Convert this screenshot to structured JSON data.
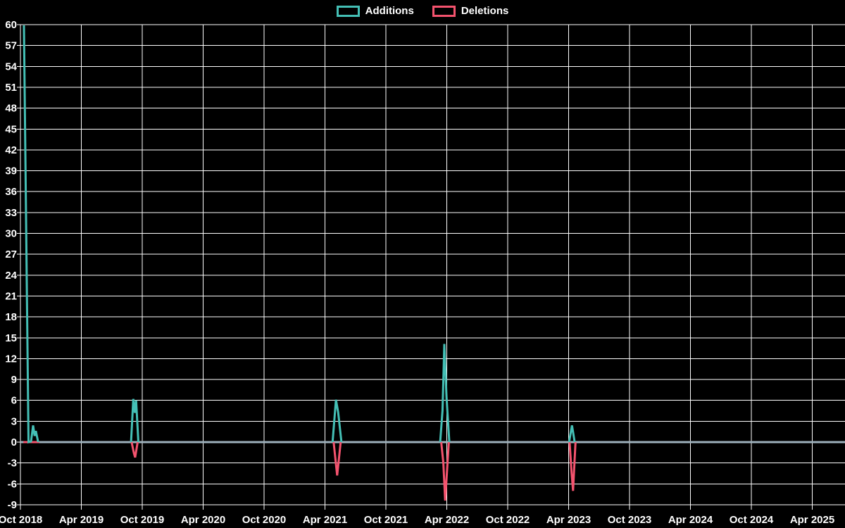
{
  "chart_data": {
    "type": "line",
    "title": "",
    "legend_position": "top-center",
    "grid": true,
    "background_color": "#000000",
    "grid_color": "#ffffff",
    "text_color": "#ffffff",
    "zero_baseline_color": "#9db0bb",
    "x_axis": {
      "unit": "months since Oct 2018",
      "tick_month_offsets": [
        0,
        6,
        12,
        18,
        24,
        30,
        36,
        42,
        48,
        54,
        60,
        66,
        72,
        78
      ],
      "tick_labels": [
        "Oct 2018",
        "Apr 2019",
        "Oct 2019",
        "Apr 2020",
        "Oct 2020",
        "Apr 2021",
        "Oct 2021",
        "Apr 2022",
        "Oct 2022",
        "Apr 2023",
        "Oct 2023",
        "Apr 2024",
        "Oct 2024",
        "Apr 2025"
      ]
    },
    "y_axis": {
      "min": -9,
      "max": 60,
      "tick_step": 3
    },
    "legend": [
      {
        "label": "Additions",
        "color": "#44bfb5"
      },
      {
        "label": "Deletions",
        "color": "#f4536e"
      }
    ],
    "series": [
      {
        "name": "Additions",
        "color": "#44bfb5",
        "segments": [
          [
            [
              0.35,
              59.9
            ],
            [
              0.8,
              0
            ],
            [
              1.05,
              0.1
            ],
            [
              1.25,
              2.4
            ],
            [
              1.4,
              0.9
            ],
            [
              1.52,
              1.6
            ],
            [
              1.75,
              0
            ]
          ],
          [
            [
              10.9,
              0
            ],
            [
              11.12,
              6.2
            ],
            [
              11.28,
              4.2
            ],
            [
              11.4,
              6.0
            ],
            [
              11.62,
              0
            ]
          ],
          [
            [
              30.75,
              0
            ],
            [
              31.08,
              6.1
            ],
            [
              31.3,
              4.3
            ],
            [
              31.62,
              0
            ]
          ],
          [
            [
              41.35,
              0
            ],
            [
              41.58,
              4.5
            ],
            [
              41.76,
              14.1
            ],
            [
              41.97,
              6.5
            ],
            [
              42.25,
              0
            ]
          ],
          [
            [
              54.05,
              0
            ],
            [
              54.33,
              2.4
            ],
            [
              54.6,
              0
            ]
          ]
        ]
      },
      {
        "name": "Deletions",
        "color": "#f4536e",
        "segments": [
          [
            [
              0.3,
              0
            ],
            [
              1.85,
              0
            ]
          ],
          [
            [
              10.95,
              0
            ],
            [
              11.18,
              -1.6
            ],
            [
              11.3,
              -2.2
            ],
            [
              11.55,
              0
            ]
          ],
          [
            [
              30.85,
              0
            ],
            [
              31.2,
              -4.8
            ],
            [
              31.55,
              0
            ]
          ],
          [
            [
              41.45,
              0
            ],
            [
              41.66,
              -3.0
            ],
            [
              41.84,
              -8.4
            ],
            [
              42.2,
              0
            ]
          ],
          [
            [
              54.1,
              0
            ],
            [
              54.3,
              -4.5
            ],
            [
              54.44,
              -7.0
            ],
            [
              54.68,
              0
            ]
          ]
        ]
      }
    ]
  }
}
